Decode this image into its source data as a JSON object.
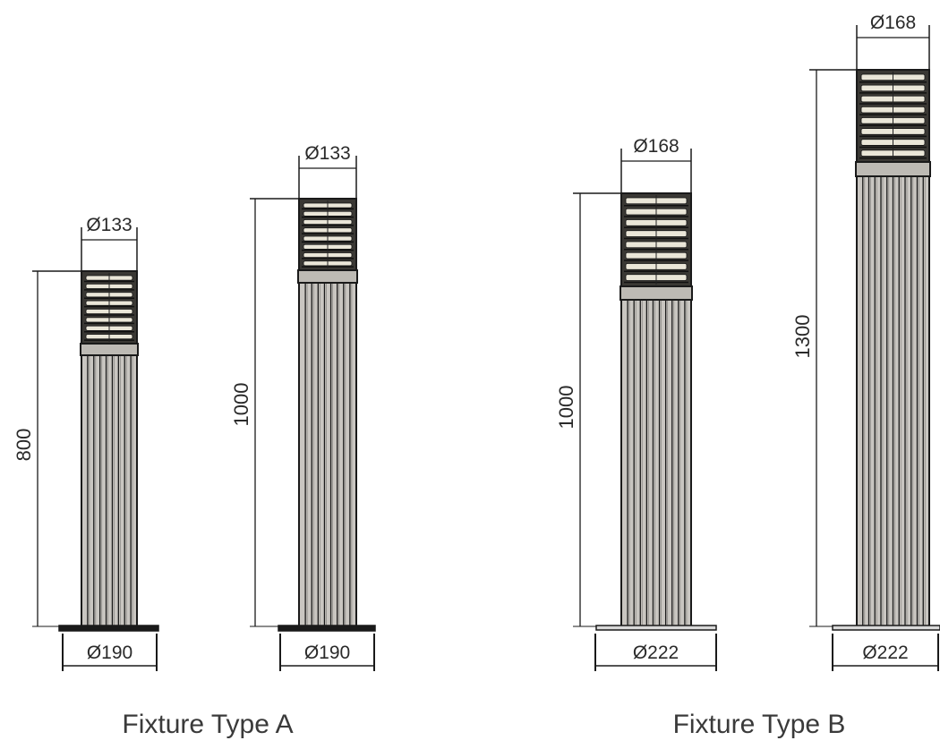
{
  "fixtures": [
    {
      "group": "A",
      "height_label": "800",
      "head_diameter_label": "Ø133",
      "base_diameter_label": "Ø190"
    },
    {
      "group": "A",
      "height_label": "1000",
      "head_diameter_label": "Ø133",
      "base_diameter_label": "Ø190"
    },
    {
      "group": "B",
      "height_label": "1000",
      "head_diameter_label": "Ø168",
      "base_diameter_label": "Ø222"
    },
    {
      "group": "B",
      "height_label": "1300",
      "head_diameter_label": "Ø168",
      "base_diameter_label": "Ø222"
    }
  ],
  "captions": {
    "type_a": "Fixture Type A",
    "type_b": "Fixture Type B"
  },
  "colors": {
    "line": "#1a1a1a",
    "shaft_fill": "#c9c6c1",
    "head_fill": "#eae6d8",
    "base_fill": "#d9d9d9"
  }
}
